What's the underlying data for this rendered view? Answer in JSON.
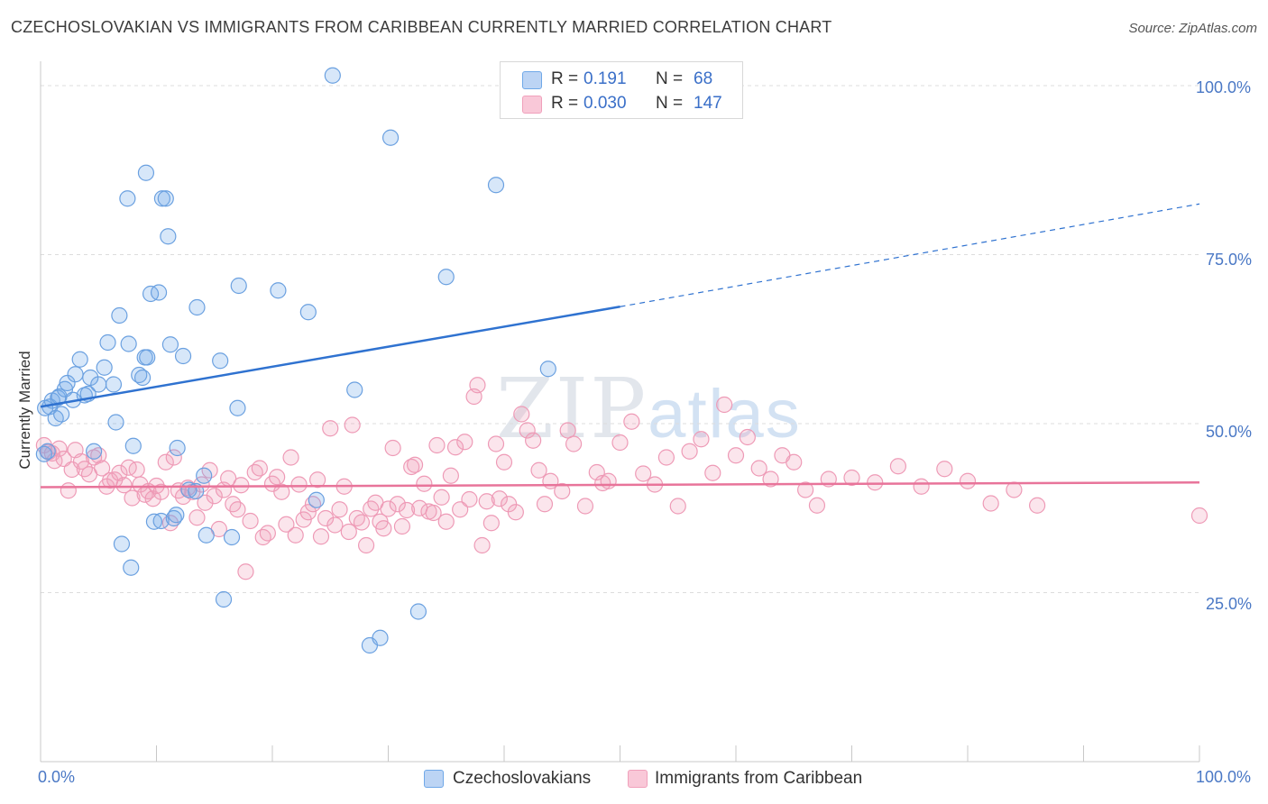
{
  "title": "CZECHOSLOVAKIAN VS IMMIGRANTS FROM CARIBBEAN CURRENTLY MARRIED CORRELATION CHART",
  "source": "Source: ZipAtlas.com",
  "watermark": {
    "zip": "ZIP",
    "atlas": "atlas"
  },
  "colors": {
    "blue": "#6fa8e8",
    "blue_line": "#2f72d0",
    "pink": "#f0a0bb",
    "pink_line": "#e8749a",
    "accent_text": "#3a6fc8"
  },
  "legend_top": {
    "rows": [
      {
        "r_label": "R =",
        "r_value": "0.191",
        "n_label": "N =",
        "n_value": "68"
      },
      {
        "r_label": "R =",
        "r_value": "0.030",
        "n_label": "N =",
        "n_value": "147"
      }
    ]
  },
  "legend_bottom": {
    "series1": "Czechoslovakians",
    "series2": "Immigrants from Caribbean"
  },
  "axes": {
    "ylabel": "Currently Married",
    "x_left": "0.0%",
    "x_right": "100.0%",
    "y_ticks": [
      "100.0%",
      "75.0%",
      "50.0%",
      "25.0%"
    ]
  },
  "chart_data": {
    "type": "scatter",
    "xlabel": "",
    "ylabel": "Currently Married",
    "xlim": [
      0,
      100
    ],
    "ylim": [
      0,
      102
    ],
    "grid": true,
    "legend_placement": "bottom",
    "series": [
      {
        "name": "Czechoslovakians",
        "R": 0.191,
        "N": 68,
        "trend": {
          "x0": 0,
          "y0": 52.5,
          "x1": 50,
          "y1": 67.3,
          "dashed_to_x": 100,
          "dashed_to_y": 82.5
        },
        "points": [
          [
            0.3,
            45.5
          ],
          [
            0.4,
            52.3
          ],
          [
            0.6,
            45.9
          ],
          [
            0.8,
            52.5
          ],
          [
            1.0,
            53.4
          ],
          [
            1.3,
            50.8
          ],
          [
            1.5,
            53.8
          ],
          [
            1.6,
            54.0
          ],
          [
            1.8,
            51.4
          ],
          [
            2.1,
            55.1
          ],
          [
            2.3,
            56.0
          ],
          [
            2.8,
            53.5
          ],
          [
            3.0,
            57.3
          ],
          [
            3.4,
            59.5
          ],
          [
            3.8,
            54.2
          ],
          [
            4.1,
            54.4
          ],
          [
            4.3,
            56.8
          ],
          [
            4.6,
            45.9
          ],
          [
            5.0,
            55.8
          ],
          [
            5.5,
            58.3
          ],
          [
            5.8,
            62.0
          ],
          [
            6.3,
            55.8
          ],
          [
            6.5,
            50.2
          ],
          [
            6.8,
            66.0
          ],
          [
            7.5,
            83.3
          ],
          [
            7.6,
            61.8
          ],
          [
            8.0,
            46.7
          ],
          [
            8.5,
            57.2
          ],
          [
            8.8,
            56.8
          ],
          [
            9.0,
            59.8
          ],
          [
            9.1,
            87.1
          ],
          [
            9.2,
            59.8
          ],
          [
            9.5,
            69.2
          ],
          [
            9.8,
            35.5
          ],
          [
            10.2,
            69.4
          ],
          [
            10.4,
            35.6
          ],
          [
            10.5,
            83.3
          ],
          [
            10.8,
            83.3
          ],
          [
            11.0,
            77.7
          ],
          [
            11.2,
            61.7
          ],
          [
            11.5,
            36.0
          ],
          [
            11.7,
            36.5
          ],
          [
            11.8,
            46.4
          ],
          [
            12.3,
            60.0
          ],
          [
            13.4,
            40.0
          ],
          [
            13.5,
            67.2
          ],
          [
            14.1,
            42.3
          ],
          [
            14.3,
            33.5
          ],
          [
            15.5,
            59.3
          ],
          [
            15.8,
            24.0
          ],
          [
            16.5,
            33.2
          ],
          [
            17.0,
            52.3
          ],
          [
            17.1,
            70.4
          ],
          [
            20.5,
            69.7
          ],
          [
            23.1,
            66.5
          ],
          [
            23.8,
            38.7
          ],
          [
            25.2,
            101.5
          ],
          [
            27.1,
            55.0
          ],
          [
            28.4,
            17.2
          ],
          [
            29.3,
            18.3
          ],
          [
            30.2,
            92.3
          ],
          [
            32.6,
            22.2
          ],
          [
            35.0,
            71.7
          ],
          [
            39.3,
            85.3
          ],
          [
            43.8,
            58.1
          ],
          [
            7.0,
            32.2
          ],
          [
            7.8,
            28.7
          ],
          [
            12.8,
            40.2
          ]
        ]
      },
      {
        "name": "Immigrants from Caribbean",
        "R": 0.03,
        "N": 147,
        "trend": {
          "x0": 0,
          "y0": 40.6,
          "x1": 100,
          "y1": 41.3
        },
        "points": [
          [
            0.3,
            46.8
          ],
          [
            0.7,
            45.8
          ],
          [
            1.0,
            45.6
          ],
          [
            1.2,
            44.5
          ],
          [
            1.6,
            46.3
          ],
          [
            2.0,
            44.8
          ],
          [
            2.4,
            40.1
          ],
          [
            2.7,
            43.2
          ],
          [
            3.0,
            46.1
          ],
          [
            3.5,
            44.4
          ],
          [
            3.8,
            43.3
          ],
          [
            4.2,
            42.5
          ],
          [
            4.6,
            45.0
          ],
          [
            5.0,
            45.3
          ],
          [
            5.3,
            43.4
          ],
          [
            5.7,
            40.7
          ],
          [
            6.0,
            41.6
          ],
          [
            6.4,
            41.7
          ],
          [
            6.8,
            42.7
          ],
          [
            7.2,
            40.9
          ],
          [
            7.6,
            43.5
          ],
          [
            7.9,
            39.0
          ],
          [
            8.3,
            43.2
          ],
          [
            8.6,
            41.0
          ],
          [
            9.0,
            39.5
          ],
          [
            9.3,
            40.0
          ],
          [
            9.7,
            38.9
          ],
          [
            10.0,
            40.8
          ],
          [
            10.4,
            39.9
          ],
          [
            10.8,
            44.3
          ],
          [
            11.2,
            35.3
          ],
          [
            11.5,
            45.0
          ],
          [
            11.9,
            40.1
          ],
          [
            12.3,
            39.2
          ],
          [
            12.7,
            40.5
          ],
          [
            13.1,
            39.9
          ],
          [
            13.5,
            36.1
          ],
          [
            13.9,
            41.0
          ],
          [
            14.2,
            38.3
          ],
          [
            14.6,
            43.1
          ],
          [
            15.0,
            39.3
          ],
          [
            15.4,
            34.4
          ],
          [
            15.8,
            40.2
          ],
          [
            16.2,
            41.9
          ],
          [
            16.6,
            38.1
          ],
          [
            17.0,
            37.3
          ],
          [
            17.3,
            40.9
          ],
          [
            17.7,
            28.1
          ],
          [
            18.1,
            35.6
          ],
          [
            18.5,
            42.8
          ],
          [
            18.9,
            43.4
          ],
          [
            19.2,
            33.2
          ],
          [
            19.6,
            33.8
          ],
          [
            20.0,
            41.1
          ],
          [
            20.4,
            42.1
          ],
          [
            20.8,
            39.9
          ],
          [
            21.2,
            35.1
          ],
          [
            21.6,
            45.0
          ],
          [
            22.0,
            33.5
          ],
          [
            22.3,
            41.0
          ],
          [
            22.7,
            35.8
          ],
          [
            23.1,
            36.9
          ],
          [
            23.5,
            38.1
          ],
          [
            23.9,
            41.7
          ],
          [
            24.2,
            33.3
          ],
          [
            24.6,
            36.0
          ],
          [
            25.0,
            49.3
          ],
          [
            25.4,
            35.0
          ],
          [
            25.8,
            37.3
          ],
          [
            26.2,
            40.7
          ],
          [
            26.6,
            34.0
          ],
          [
            26.9,
            49.8
          ],
          [
            27.3,
            36.0
          ],
          [
            27.7,
            35.4
          ],
          [
            28.1,
            32.0
          ],
          [
            28.5,
            37.4
          ],
          [
            28.9,
            38.3
          ],
          [
            29.3,
            35.5
          ],
          [
            29.6,
            34.5
          ],
          [
            30.0,
            37.4
          ],
          [
            30.4,
            46.4
          ],
          [
            30.8,
            38.1
          ],
          [
            31.2,
            34.8
          ],
          [
            31.6,
            37.2
          ],
          [
            32.0,
            43.6
          ],
          [
            32.3,
            43.9
          ],
          [
            32.7,
            37.5
          ],
          [
            33.1,
            41.1
          ],
          [
            33.5,
            37.0
          ],
          [
            33.9,
            36.8
          ],
          [
            34.2,
            46.8
          ],
          [
            34.6,
            39.1
          ],
          [
            35.0,
            35.5
          ],
          [
            35.4,
            42.3
          ],
          [
            35.8,
            46.5
          ],
          [
            36.2,
            37.3
          ],
          [
            36.6,
            47.3
          ],
          [
            37.0,
            38.8
          ],
          [
            37.4,
            54.0
          ],
          [
            37.7,
            55.7
          ],
          [
            38.1,
            32.0
          ],
          [
            38.5,
            38.5
          ],
          [
            38.9,
            35.3
          ],
          [
            39.3,
            47.0
          ],
          [
            39.6,
            38.9
          ],
          [
            40.0,
            44.3
          ],
          [
            40.4,
            38.1
          ],
          [
            41.0,
            36.9
          ],
          [
            41.5,
            51.4
          ],
          [
            42.0,
            49.0
          ],
          [
            42.5,
            47.5
          ],
          [
            43.0,
            43.1
          ],
          [
            43.5,
            38.1
          ],
          [
            44.0,
            41.5
          ],
          [
            45.0,
            40.0
          ],
          [
            45.5,
            49.0
          ],
          [
            46.0,
            47.0
          ],
          [
            47.0,
            37.8
          ],
          [
            48.0,
            42.8
          ],
          [
            48.5,
            41.2
          ],
          [
            49.0,
            41.5
          ],
          [
            50.0,
            47.2
          ],
          [
            51.0,
            50.3
          ],
          [
            52.0,
            42.6
          ],
          [
            53.0,
            41.0
          ],
          [
            54.0,
            45.0
          ],
          [
            55.0,
            37.8
          ],
          [
            56.0,
            45.9
          ],
          [
            57.0,
            47.7
          ],
          [
            58.0,
            42.7
          ],
          [
            59.0,
            52.8
          ],
          [
            60.0,
            45.3
          ],
          [
            61.0,
            48.0
          ],
          [
            62.0,
            43.4
          ],
          [
            63.0,
            41.8
          ],
          [
            64.0,
            45.3
          ],
          [
            65.0,
            44.3
          ],
          [
            66.0,
            40.2
          ],
          [
            67.0,
            37.9
          ],
          [
            68.0,
            41.8
          ],
          [
            70.0,
            42.0
          ],
          [
            72.0,
            41.3
          ],
          [
            74.0,
            43.7
          ],
          [
            76.0,
            40.7
          ],
          [
            78.0,
            43.3
          ],
          [
            80.0,
            41.5
          ],
          [
            82.0,
            38.2
          ],
          [
            84.0,
            40.2
          ],
          [
            86.0,
            37.9
          ],
          [
            100.0,
            36.4
          ]
        ]
      }
    ]
  }
}
